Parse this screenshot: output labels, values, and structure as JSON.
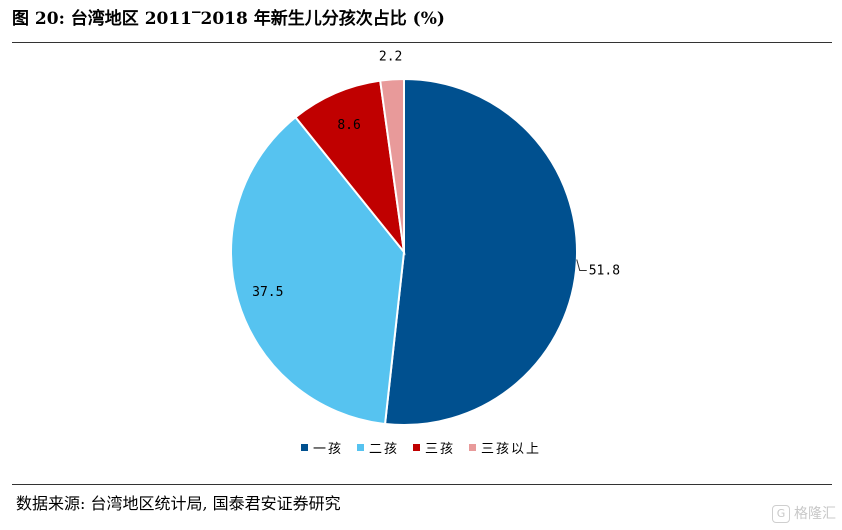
{
  "header": {
    "title": "图 20: 台湾地区 2011‾2018 年新生儿分孩次占比 (%)"
  },
  "footer": {
    "source": "数据来源: 台湾地区统计局, 国泰君安证券研究",
    "watermark": "格隆汇",
    "watermark_logo": "G"
  },
  "chart_data": {
    "type": "pie",
    "title": "图 20: 台湾地区 2011‾2018 年新生儿分孩次占比 (%)",
    "categories": [
      "一孩",
      "二孩",
      "三孩",
      "三孩以上"
    ],
    "values": [
      51.8,
      37.5,
      8.6,
      2.2
    ],
    "value_labels": [
      "51.8",
      "37.5",
      "8.6",
      "2.2"
    ],
    "colors": [
      "#00508f",
      "#56c3f0",
      "#c00000",
      "#e89a9a"
    ],
    "start_angle_deg": 0,
    "direction": "clockwise",
    "legend_position": "bottom"
  }
}
